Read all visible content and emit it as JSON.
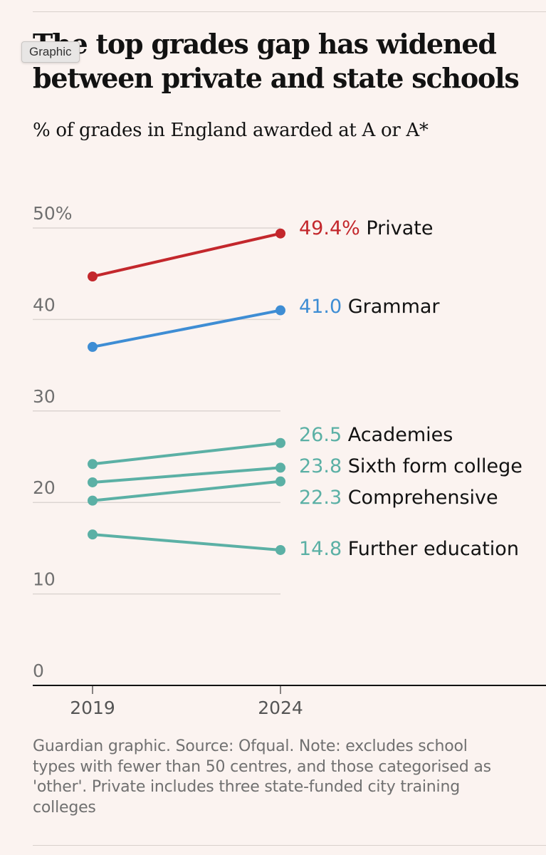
{
  "header": {
    "title": "The top grades gap has widened between private and state schools",
    "subtitle": "% of grades in England awarded at A or A*",
    "tooltip": "Graphic"
  },
  "footer": {
    "note": "Guardian graphic. Source: Ofqual. Note: excludes school types with fewer than 50 centres, and those categorised as 'other'. Private includes three state-funded city training colleges"
  },
  "chart_data": {
    "type": "line",
    "x": [
      "2019",
      "2024"
    ],
    "ylim": [
      0,
      50
    ],
    "yticks": [
      0,
      10,
      20,
      30,
      40,
      50
    ],
    "ytick_labels": [
      "0",
      "10",
      "20",
      "30",
      "40",
      "50%"
    ],
    "grid": true,
    "series": [
      {
        "name": "Private",
        "values": [
          44.7,
          49.4
        ],
        "end_label": "49.4%",
        "color": "#c3272c"
      },
      {
        "name": "Grammar",
        "values": [
          37.0,
          41.0
        ],
        "end_label": "41.0",
        "color": "#3e8dd4"
      },
      {
        "name": "Academies",
        "values": [
          24.2,
          26.5
        ],
        "end_label": "26.5",
        "color": "#5bb0a5"
      },
      {
        "name": "Sixth form college",
        "values": [
          22.2,
          23.8
        ],
        "end_label": "23.8",
        "color": "#5bb0a5"
      },
      {
        "name": "Comprehensive",
        "values": [
          20.2,
          22.3
        ],
        "end_label": "22.3",
        "color": "#5bb0a5"
      },
      {
        "name": "Further education",
        "values": [
          16.5,
          14.8
        ],
        "end_label": "14.8",
        "color": "#5bb0a5"
      }
    ]
  }
}
